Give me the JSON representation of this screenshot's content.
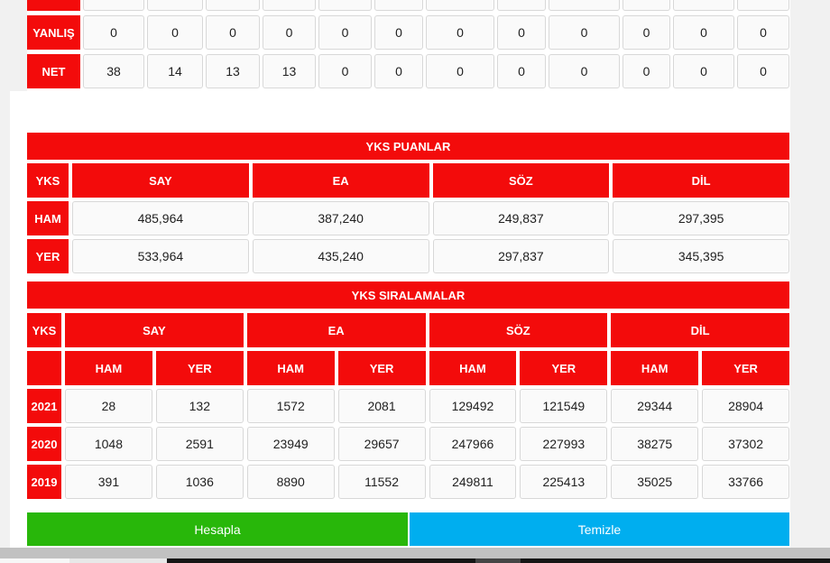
{
  "colors": {
    "red": "#f30b0b",
    "green": "#28b70a",
    "blue": "#00aeef",
    "page_bg": "#f1f1f1"
  },
  "net_table": {
    "partial_row_values": [
      "",
      "",
      "",
      "",
      "",
      "",
      "",
      "",
      "",
      "",
      "",
      ""
    ],
    "rows": [
      {
        "label": "YANLIŞ",
        "values": [
          "0",
          "0",
          "0",
          "0",
          "0",
          "0",
          "0",
          "0",
          "0",
          "0",
          "0",
          "0"
        ]
      },
      {
        "label": "NET",
        "values": [
          "38",
          "14",
          "13",
          "13",
          "0",
          "0",
          "0",
          "0",
          "0",
          "0",
          "0",
          "0"
        ]
      }
    ]
  },
  "puanlar": {
    "title": "YKS PUANLAR",
    "corner": "YKS",
    "columns": [
      "SAY",
      "EA",
      "SÖZ",
      "DİL"
    ],
    "rows": [
      {
        "label": "HAM",
        "values": [
          "485,964",
          "387,240",
          "249,837",
          "297,395"
        ]
      },
      {
        "label": "YER",
        "values": [
          "533,964",
          "435,240",
          "297,837",
          "345,395"
        ]
      }
    ]
  },
  "siralamalar": {
    "title": "YKS SIRALAMALAR",
    "corner": "YKS",
    "columns": [
      "SAY",
      "EA",
      "SÖZ",
      "DİL"
    ],
    "sub_headers": [
      "HAM",
      "YER",
      "HAM",
      "YER",
      "HAM",
      "YER",
      "HAM",
      "YER"
    ],
    "rows": [
      {
        "label": "2021",
        "values": [
          "28",
          "132",
          "1572",
          "2081",
          "129492",
          "121549",
          "29344",
          "28904"
        ]
      },
      {
        "label": "2020",
        "values": [
          "1048",
          "2591",
          "23949",
          "29657",
          "247966",
          "227993",
          "38275",
          "37302"
        ]
      },
      {
        "label": "2019",
        "values": [
          "391",
          "1036",
          "8890",
          "11552",
          "249811",
          "225413",
          "35025",
          "33766"
        ]
      }
    ]
  },
  "buttons": {
    "calculate": "Hesapla",
    "clear": "Temizle"
  }
}
